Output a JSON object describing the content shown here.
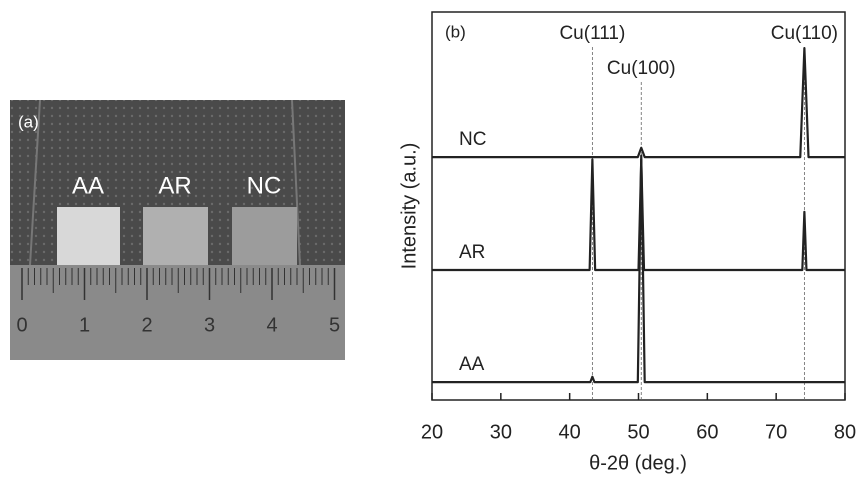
{
  "photo": {
    "label": "(a)",
    "samples": [
      "AA",
      "AR",
      "NC"
    ],
    "ruler": [
      0,
      1,
      2,
      3,
      4,
      5
    ]
  },
  "chart_data": {
    "type": "line",
    "panel_label": "(b)",
    "xlabel": "θ-2θ (deg.)",
    "ylabel": "Intensity (a.u.)",
    "xlim": [
      20,
      80
    ],
    "xticks": [
      20,
      30,
      40,
      50,
      60,
      70,
      80
    ],
    "ylim": [
      0,
      100
    ],
    "annotations": [
      {
        "x": 43.3,
        "label": "Cu(111)"
      },
      {
        "x": 50.4,
        "label": "Cu(100)"
      },
      {
        "x": 74.1,
        "label": "Cu(110)"
      }
    ],
    "series": [
      {
        "name": "NC",
        "color": "#222222",
        "x": [
          20,
          49.9,
          50.4,
          50.9,
          73.5,
          74.1,
          74.7,
          80
        ],
        "values": [
          62.6,
          62.6,
          65,
          62.6,
          62.6,
          90.7,
          62.6,
          62.6
        ]
      },
      {
        "name": "AR",
        "color": "#222222",
        "x": [
          20,
          42.9,
          43.3,
          43.7,
          50,
          50.4,
          50.8,
          73.8,
          74.1,
          74.4,
          80
        ],
        "values": [
          33.5,
          33.5,
          62,
          33.5,
          33.5,
          62,
          33.5,
          33.5,
          48.5,
          33.5,
          33.5
        ]
      },
      {
        "name": "AA",
        "color": "#222222",
        "x": [
          20,
          43,
          43.3,
          43.6,
          49.9,
          50.4,
          50.9,
          80
        ],
        "values": [
          4.6,
          4.6,
          6,
          4.6,
          4.6,
          63,
          4.6,
          4.6
        ]
      }
    ]
  }
}
